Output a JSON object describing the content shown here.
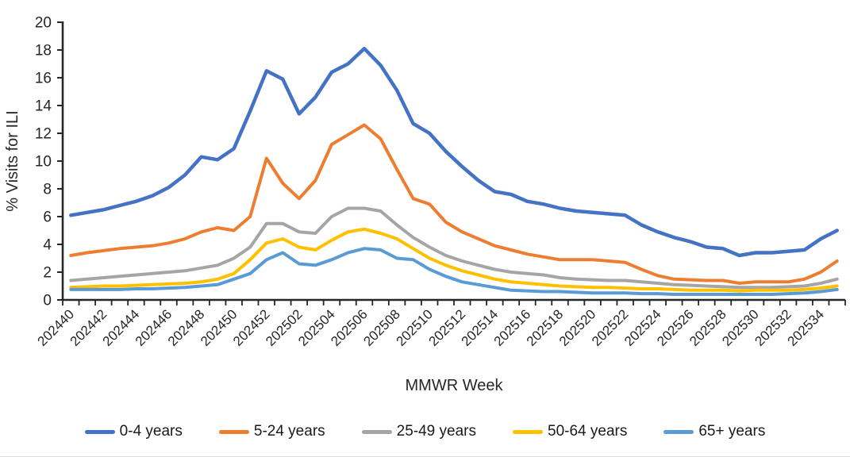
{
  "chart_data": {
    "type": "line",
    "title": "",
    "xlabel": "MMWR Week",
    "ylabel": "% Visits for ILI",
    "ylim": [
      0,
      20
    ],
    "yticks": [
      0,
      2,
      4,
      6,
      8,
      10,
      12,
      14,
      16,
      18,
      20
    ],
    "x_tick_label_interval": 2,
    "grid": false,
    "legend_position": "bottom",
    "x": [
      "202440",
      "202441",
      "202442",
      "202443",
      "202444",
      "202445",
      "202446",
      "202447",
      "202448",
      "202449",
      "202450",
      "202451",
      "202452",
      "202501",
      "202502",
      "202503",
      "202504",
      "202505",
      "202506",
      "202507",
      "202508",
      "202509",
      "202510",
      "202511",
      "202512",
      "202513",
      "202514",
      "202515",
      "202516",
      "202517",
      "202518",
      "202519",
      "202520",
      "202521",
      "202522",
      "202523",
      "202524",
      "202525",
      "202526",
      "202527",
      "202528",
      "202529",
      "202530",
      "202531",
      "202532",
      "202533",
      "202534",
      "202535"
    ],
    "series": [
      {
        "name": "0-4 years",
        "color": "#4472C4",
        "width": 4.5,
        "values": [
          6.1,
          6.3,
          6.5,
          6.8,
          7.1,
          7.5,
          8.1,
          9.0,
          10.3,
          10.1,
          10.9,
          13.6,
          16.5,
          15.9,
          13.4,
          14.6,
          16.4,
          17.0,
          18.1,
          16.9,
          15.1,
          12.7,
          12.0,
          10.7,
          9.6,
          8.6,
          7.8,
          7.6,
          7.1,
          6.9,
          6.6,
          6.4,
          6.3,
          6.2,
          6.1,
          5.4,
          4.9,
          4.5,
          4.2,
          3.8,
          3.7,
          3.2,
          3.4,
          3.4,
          3.5,
          3.6,
          4.4,
          5.0
        ]
      },
      {
        "name": "5-24 years",
        "color": "#ED7D31",
        "width": 4,
        "values": [
          3.2,
          3.4,
          3.55,
          3.7,
          3.8,
          3.9,
          4.1,
          4.4,
          4.9,
          5.2,
          5.0,
          6.0,
          10.2,
          8.4,
          7.3,
          8.6,
          11.2,
          11.9,
          12.6,
          11.6,
          9.4,
          7.3,
          6.9,
          5.6,
          4.9,
          4.4,
          3.9,
          3.6,
          3.3,
          3.1,
          2.9,
          2.9,
          2.9,
          2.8,
          2.7,
          2.2,
          1.75,
          1.5,
          1.45,
          1.4,
          1.4,
          1.2,
          1.3,
          1.3,
          1.3,
          1.5,
          2.0,
          2.8
        ]
      },
      {
        "name": "25-49 years",
        "color": "#A5A5A5",
        "width": 4,
        "values": [
          1.4,
          1.5,
          1.6,
          1.7,
          1.8,
          1.9,
          2.0,
          2.1,
          2.3,
          2.5,
          3.0,
          3.8,
          5.5,
          5.5,
          4.9,
          4.8,
          6.0,
          6.6,
          6.6,
          6.4,
          5.4,
          4.5,
          3.8,
          3.2,
          2.8,
          2.5,
          2.2,
          2.0,
          1.9,
          1.8,
          1.6,
          1.5,
          1.45,
          1.4,
          1.4,
          1.3,
          1.2,
          1.1,
          1.05,
          1.0,
          0.95,
          0.9,
          0.9,
          0.9,
          0.95,
          1.0,
          1.2,
          1.5
        ]
      },
      {
        "name": "50-64 years",
        "color": "#FFC000",
        "width": 4,
        "values": [
          0.9,
          0.95,
          1.0,
          1.0,
          1.05,
          1.1,
          1.15,
          1.2,
          1.3,
          1.5,
          1.9,
          2.9,
          4.1,
          4.4,
          3.8,
          3.6,
          4.3,
          4.9,
          5.1,
          4.8,
          4.4,
          3.7,
          3.0,
          2.5,
          2.1,
          1.8,
          1.5,
          1.3,
          1.2,
          1.1,
          1.0,
          0.95,
          0.9,
          0.9,
          0.85,
          0.8,
          0.8,
          0.75,
          0.7,
          0.7,
          0.7,
          0.65,
          0.7,
          0.7,
          0.7,
          0.75,
          0.85,
          1.0
        ]
      },
      {
        "name": "65+ years",
        "color": "#5B9BD5",
        "width": 4,
        "values": [
          0.75,
          0.75,
          0.75,
          0.75,
          0.8,
          0.8,
          0.85,
          0.9,
          1.0,
          1.1,
          1.5,
          1.9,
          2.9,
          3.4,
          2.6,
          2.5,
          2.9,
          3.4,
          3.7,
          3.6,
          3.0,
          2.9,
          2.2,
          1.7,
          1.3,
          1.1,
          0.9,
          0.7,
          0.65,
          0.6,
          0.6,
          0.55,
          0.5,
          0.5,
          0.5,
          0.45,
          0.45,
          0.4,
          0.4,
          0.4,
          0.4,
          0.4,
          0.4,
          0.4,
          0.45,
          0.5,
          0.6,
          0.75
        ]
      }
    ]
  }
}
